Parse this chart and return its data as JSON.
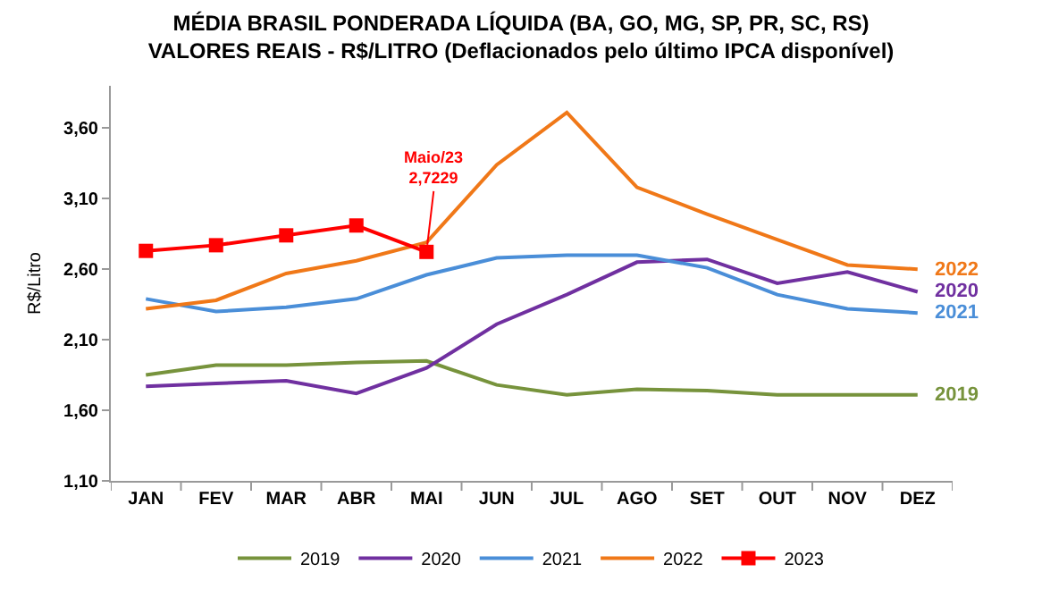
{
  "chart_data": {
    "type": "line",
    "title": "MÉDIA BRASIL PONDERADA LÍQUIDA (BA, GO, MG, SP, PR, SC, RS)\nVALORES REAIS - R$/LITRO (Deflacionados pelo último IPCA disponível)",
    "ylabel": "R$/Litro",
    "categories": [
      "JAN",
      "FEV",
      "MAR",
      "ABR",
      "MAI",
      "JUN",
      "JUL",
      "AGO",
      "SET",
      "OUT",
      "NOV",
      "DEZ"
    ],
    "series": [
      {
        "name": "2019",
        "color": "#77933c",
        "values": [
          1.85,
          1.92,
          1.92,
          1.94,
          1.95,
          1.78,
          1.71,
          1.75,
          1.74,
          1.71,
          1.71,
          1.71
        ]
      },
      {
        "name": "2020",
        "color": "#7030a0",
        "values": [
          1.77,
          1.79,
          1.81,
          1.72,
          1.9,
          2.21,
          2.42,
          2.65,
          2.67,
          2.5,
          2.58,
          2.44
        ]
      },
      {
        "name": "2021",
        "color": "#4a8ed8",
        "values": [
          2.39,
          2.3,
          2.33,
          2.39,
          2.56,
          2.68,
          2.7,
          2.7,
          2.61,
          2.42,
          2.32,
          2.29
        ]
      },
      {
        "name": "2022",
        "color": "#f07818",
        "values": [
          2.32,
          2.38,
          2.57,
          2.66,
          2.79,
          3.34,
          3.71,
          3.18,
          2.99,
          2.81,
          2.63,
          2.6
        ]
      },
      {
        "name": "2023",
        "color": "#ff0000",
        "marker": "square",
        "values": [
          2.73,
          2.77,
          2.84,
          2.91,
          2.7229,
          null,
          null,
          null,
          null,
          null,
          null,
          null
        ]
      }
    ],
    "ylim": [
      1.1,
      3.9
    ],
    "yticks": [
      {
        "value": 1.1,
        "label": "1,10"
      },
      {
        "value": 1.6,
        "label": "1,60"
      },
      {
        "value": 2.1,
        "label": "2,10"
      },
      {
        "value": 2.6,
        "label": "2,60"
      },
      {
        "value": 3.1,
        "label": "3,10"
      },
      {
        "value": 3.6,
        "label": "3,60"
      }
    ],
    "annotations": [
      {
        "text": "Maio/23\n2,7229",
        "x": "MAI",
        "y": 2.7229
      }
    ],
    "grid": false,
    "legend": "bottom",
    "marker": "none",
    "line_style": "solid"
  }
}
